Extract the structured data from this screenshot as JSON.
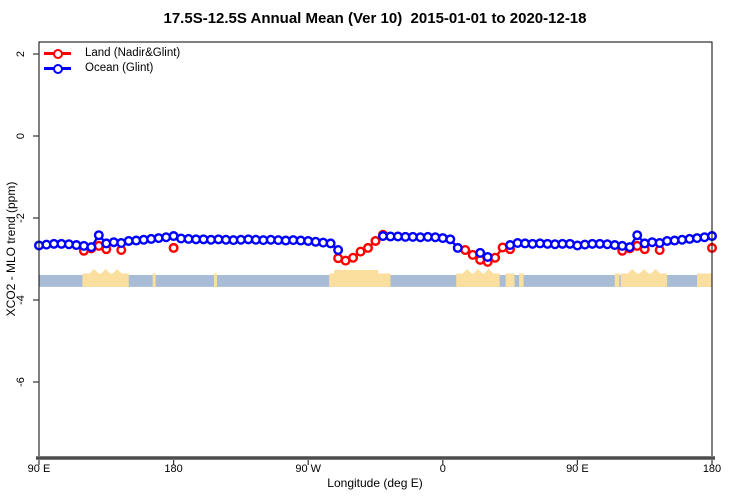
{
  "title": "17.5S-12.5S Annual Mean (Ver 10)  2015-01-01 to 2020-12-18",
  "chart_data": {
    "type": "line",
    "title": "17.5S-12.5S Annual Mean (Ver 10)  2015-01-01 to 2020-12-18",
    "xlabel": "Longitude (deg E)",
    "ylabel": "XCO2 - MLO trend (ppm)",
    "xlim": [
      90,
      540
    ],
    "ylim": [
      -7.8,
      2.3
    ],
    "grid": false,
    "legend": {
      "position": "top-left"
    },
    "x_ticks": [
      {
        "value": 90,
        "label": "90 E"
      },
      {
        "value": 180,
        "label": "180"
      },
      {
        "value": 270,
        "label": "90 W"
      },
      {
        "value": 360,
        "label": "0"
      },
      {
        "value": 450,
        "label": "90 E"
      },
      {
        "value": 540,
        "label": "180"
      }
    ],
    "y_ticks": [
      {
        "value": 2,
        "label": "2"
      },
      {
        "value": 0,
        "label": "0"
      },
      {
        "value": -2,
        "label": "-2"
      },
      {
        "value": -4,
        "label": "-4"
      },
      {
        "value": -6,
        "label": "-6"
      }
    ],
    "x": [
      90,
      95,
      100,
      105,
      110,
      115,
      120,
      125,
      130,
      135,
      140,
      145,
      150,
      155,
      160,
      165,
      170,
      175,
      180,
      185,
      190,
      195,
      200,
      205,
      210,
      215,
      220,
      225,
      230,
      235,
      240,
      245,
      250,
      255,
      260,
      265,
      270,
      275,
      280,
      285,
      290,
      295,
      300,
      305,
      310,
      315,
      320,
      325,
      330,
      335,
      340,
      345,
      350,
      355,
      360,
      365,
      370,
      375,
      380,
      385,
      390,
      395,
      400,
      405,
      410,
      415,
      420,
      425,
      430,
      435,
      440,
      445,
      450,
      455,
      460,
      465,
      470,
      475,
      480,
      485,
      490,
      495,
      500,
      505,
      510,
      515,
      520,
      525,
      530,
      535,
      540
    ],
    "series": [
      {
        "name": "Land (Nadir&Glint)",
        "color": "#FF0000",
        "marker": "open-circle",
        "values": [
          null,
          null,
          null,
          null,
          null,
          null,
          -2.8,
          -2.74,
          -2.68,
          -2.76,
          null,
          -2.78,
          null,
          null,
          null,
          null,
          null,
          null,
          -2.73,
          null,
          null,
          null,
          null,
          null,
          null,
          null,
          null,
          null,
          null,
          null,
          null,
          null,
          null,
          null,
          null,
          null,
          null,
          null,
          null,
          null,
          -2.98,
          -3.04,
          -2.97,
          -2.82,
          -2.73,
          -2.56,
          -2.41,
          null,
          null,
          null,
          null,
          null,
          null,
          null,
          null,
          null,
          null,
          -2.78,
          -2.9,
          -3.02,
          -3.07,
          -2.97,
          -2.72,
          -2.76,
          null,
          null,
          null,
          null,
          null,
          null,
          null,
          null,
          null,
          null,
          null,
          null,
          null,
          null,
          -2.8,
          -2.74,
          -2.68,
          -2.76,
          null,
          -2.78,
          null,
          null,
          null,
          null,
          null,
          null,
          -2.73
        ]
      },
      {
        "name": "Ocean (Glint)",
        "color": "#0000FF",
        "marker": "open-circle",
        "values": [
          -2.67,
          -2.65,
          -2.63,
          -2.63,
          -2.64,
          -2.66,
          -2.68,
          -2.71,
          -2.42,
          -2.62,
          -2.59,
          -2.61,
          -2.56,
          -2.55,
          -2.53,
          -2.51,
          -2.49,
          -2.47,
          -2.44,
          -2.5,
          -2.51,
          -2.52,
          -2.52,
          -2.53,
          -2.52,
          -2.53,
          -2.54,
          -2.53,
          -2.52,
          -2.53,
          -2.54,
          -2.53,
          -2.54,
          -2.55,
          -2.54,
          -2.55,
          -2.56,
          -2.58,
          -2.6,
          -2.62,
          -2.78,
          null,
          null,
          null,
          null,
          null,
          -2.44,
          -2.45,
          -2.45,
          -2.46,
          -2.46,
          -2.47,
          -2.46,
          -2.47,
          -2.49,
          -2.52,
          -2.73,
          null,
          null,
          -2.85,
          -2.95,
          null,
          null,
          -2.66,
          -2.61,
          -2.62,
          -2.63,
          -2.62,
          -2.63,
          -2.64,
          -2.63,
          -2.63,
          -2.67,
          -2.65,
          -2.63,
          -2.63,
          -2.64,
          -2.66,
          -2.68,
          -2.71,
          -2.42,
          -2.62,
          -2.59,
          -2.61,
          -2.56,
          -2.55,
          -2.53,
          -2.51,
          -2.49,
          -2.47,
          -2.44
        ]
      }
    ],
    "map_strip": {
      "description": "ocean/land strip along latitude band",
      "ocean_color": "#A8BCD6",
      "land_color": "#FBDF9F",
      "y_range_ppm": [
        -3.68,
        -3.39
      ],
      "land_segments": [
        {
          "from": 119,
          "to": 150,
          "relief": "peaks"
        },
        {
          "from": 166,
          "to": 168,
          "relief": "none"
        },
        {
          "from": 207,
          "to": 209,
          "relief": "none"
        },
        {
          "from": 284,
          "to": 325,
          "relief": "plateau"
        },
        {
          "from": 369,
          "to": 398,
          "relief": "peaks"
        },
        {
          "from": 402,
          "to": 408,
          "relief": "none"
        },
        {
          "from": 411,
          "to": 414,
          "relief": "none"
        },
        {
          "from": 475,
          "to": 478,
          "relief": "none"
        },
        {
          "from": 479,
          "to": 510,
          "relief": "peaks"
        },
        {
          "from": 530,
          "to": 540,
          "relief": "none"
        }
      ]
    }
  }
}
